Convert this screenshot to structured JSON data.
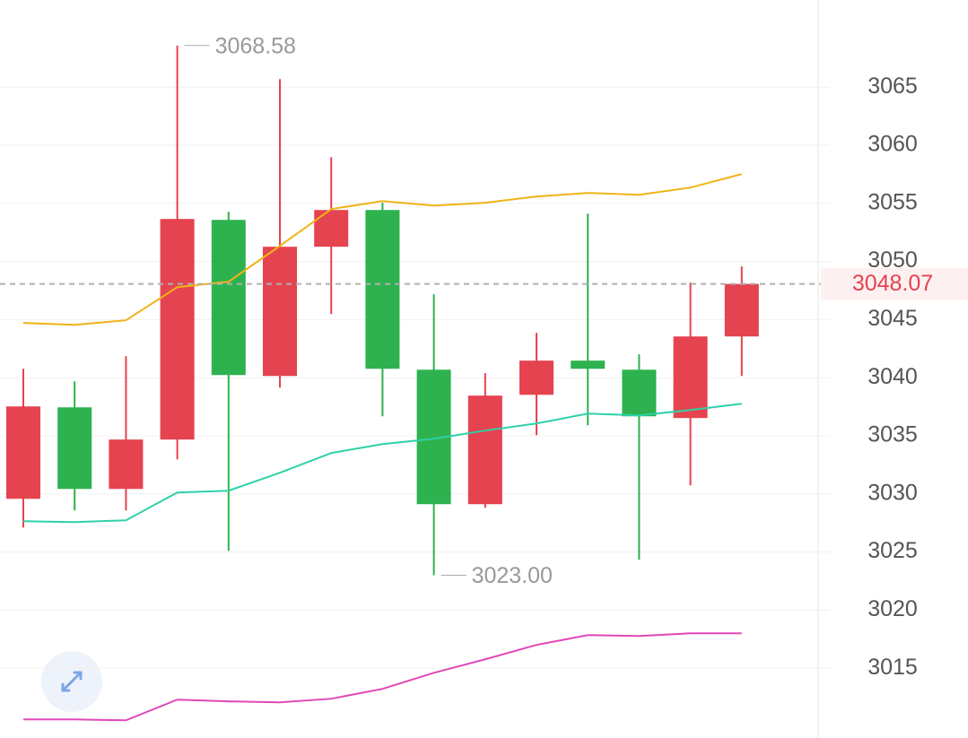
{
  "chart_data": {
    "type": "candlestick",
    "ylim": [
      3009,
      3072.5
    ],
    "yticks": [
      3015,
      3020,
      3025,
      3030,
      3035,
      3040,
      3045,
      3050,
      3055,
      3060,
      3065
    ],
    "grid": true,
    "up_color": "#e5434f",
    "down_color": "#2db24f",
    "candles": {
      "open": [
        3029.58,
        3037.45,
        3030.43,
        3034.68,
        3053.58,
        3040.15,
        3051.27,
        3054.43,
        3040.69,
        3029.12,
        3038.53,
        3041.47,
        3040.69,
        3036.53,
        3043.55
      ],
      "high": [
        3040.77,
        3039.69,
        3041.85,
        3068.58,
        3054.27,
        3065.69,
        3058.98,
        3055.05,
        3047.18,
        3040.39,
        3043.86,
        3054.12,
        3042.01,
        3048.18,
        3049.57
      ],
      "low": [
        3027.11,
        3028.58,
        3028.58,
        3032.98,
        3025.11,
        3039.15,
        3045.48,
        3036.68,
        3023.0,
        3028.81,
        3035.06,
        3035.91,
        3024.34,
        3030.74,
        3040.15
      ],
      "close": [
        3037.53,
        3030.43,
        3034.68,
        3053.66,
        3040.23,
        3051.27,
        3054.43,
        3040.77,
        3029.12,
        3038.46,
        3041.47,
        3040.77,
        3036.68,
        3043.55,
        3048.07
      ]
    },
    "lines": [
      {
        "color": "#f0b417",
        "values": [
          3044.71,
          3044.55,
          3044.94,
          3047.79,
          3048.26,
          3051.34,
          3054.51,
          3055.2,
          3054.81,
          3055.05,
          3055.59,
          3055.9,
          3055.74,
          3056.36,
          3057.52
        ]
      },
      {
        "color": "#2ed1a8",
        "values": [
          3027.65,
          3027.58,
          3027.73,
          3030.12,
          3030.28,
          3031.82,
          3033.52,
          3034.29,
          3034.75,
          3035.45,
          3036.06,
          3036.91,
          3036.76,
          3037.22,
          3037.76
        ]
      },
      {
        "color": "#e048b8",
        "values": [
          3010.6,
          3010.6,
          3010.52,
          3012.3,
          3012.15,
          3012.07,
          3012.38,
          3013.23,
          3014.61,
          3015.77,
          3017.01,
          3017.85,
          3017.78,
          3018.01,
          3018.01
        ]
      }
    ],
    "high_annotation": 3068.58,
    "low_annotation": {
      "value": 3023,
      "label": "3023.00"
    },
    "current_price": 3048.07
  }
}
